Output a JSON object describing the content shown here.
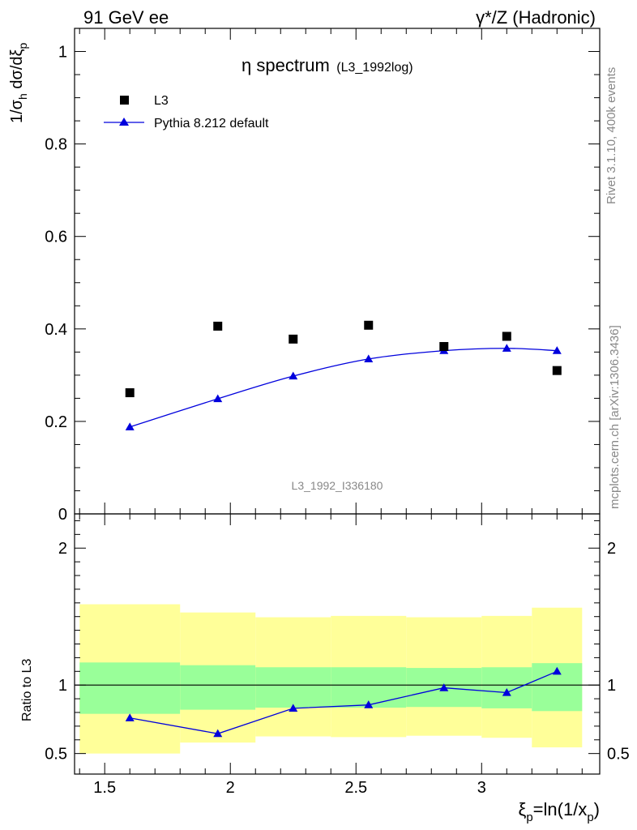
{
  "header": {
    "left": "91 GeV ee",
    "right": "γ*/Z (Hadronic)"
  },
  "main_title": {
    "prefix": "η spectrum",
    "suffix": "(L3_1992log)"
  },
  "watermark": "L3_1992_I336180",
  "side_labels": {
    "rivet": "Rivet 3.1.10,  400k events",
    "mcplots": "mcplots.cern.ch [arXiv:1306.3436]"
  },
  "colors": {
    "mc": "#0000dd",
    "data": "#000000",
    "band_inner": "#99ff99",
    "band_outer": "#ffff99"
  },
  "chart_data": [
    {
      "type": "scatter",
      "panel": "main",
      "ylabel": "1/σh dσ/dξp",
      "ylim": [
        0,
        1.05
      ],
      "xlim": [
        1.38,
        3.47
      ],
      "yticks": [
        0,
        0.2,
        0.4,
        0.6,
        0.8,
        1
      ],
      "ytick_labels": [
        "0",
        "0.2",
        "0.4",
        "0.6",
        "0.8",
        "1"
      ],
      "legend": {
        "placement": "top-left",
        "entries": [
          {
            "label": "L3",
            "marker": "square"
          },
          {
            "label": "Pythia 8.212 default",
            "marker": "triangle"
          }
        ]
      },
      "series": [
        {
          "name": "L3",
          "x": [
            1.6,
            1.95,
            2.25,
            2.55,
            2.85,
            3.1,
            3.3
          ],
          "y": [
            0.262,
            0.406,
            0.378,
            0.408,
            0.362,
            0.384,
            0.31
          ]
        },
        {
          "name": "Pythia 8.212 default",
          "x": [
            1.6,
            1.95,
            2.25,
            2.55,
            2.85,
            3.1,
            3.3
          ],
          "y": [
            0.188,
            0.249,
            0.298,
            0.335,
            0.353,
            0.358,
            0.353
          ]
        }
      ]
    },
    {
      "type": "line",
      "panel": "ratio",
      "ylabel": "Ratio to L3",
      "ylim": [
        0.35,
        2.25
      ],
      "yticks": [
        0.5,
        1,
        2
      ],
      "ytick_labels": [
        "0.5",
        "1",
        "2"
      ],
      "xlabel": "ξp=ln(1/xp)",
      "xticks": [
        1.5,
        2,
        2.5,
        3
      ],
      "xtick_labels": [
        "1.5",
        "2",
        "2.5",
        "3"
      ],
      "reference": 1,
      "bands": [
        {
          "x0": 1.4,
          "x1": 1.8,
          "inner": [
            0.79,
            1.165
          ],
          "outer": [
            0.5,
            1.59
          ]
        },
        {
          "x0": 1.8,
          "x1": 2.1,
          "inner": [
            0.82,
            1.145
          ],
          "outer": [
            0.58,
            1.53
          ]
        },
        {
          "x0": 2.1,
          "x1": 2.4,
          "inner": [
            0.835,
            1.13
          ],
          "outer": [
            0.625,
            1.495
          ]
        },
        {
          "x0": 2.4,
          "x1": 2.7,
          "inner": [
            0.835,
            1.13
          ],
          "outer": [
            0.62,
            1.505
          ]
        },
        {
          "x0": 2.7,
          "x1": 3.0,
          "inner": [
            0.84,
            1.125
          ],
          "outer": [
            0.63,
            1.495
          ]
        },
        {
          "x0": 3.0,
          "x1": 3.2,
          "inner": [
            0.83,
            1.13
          ],
          "outer": [
            0.615,
            1.505
          ]
        },
        {
          "x0": 3.2,
          "x1": 3.4,
          "inner": [
            0.81,
            1.16
          ],
          "outer": [
            0.545,
            1.565
          ]
        }
      ],
      "series": [
        {
          "name": "Pythia 8.212 default",
          "x": [
            1.6,
            1.95,
            2.25,
            2.55,
            2.85,
            3.1,
            3.3
          ],
          "y": [
            0.76,
            0.645,
            0.83,
            0.855,
            0.98,
            0.945,
            1.1
          ]
        }
      ]
    }
  ]
}
